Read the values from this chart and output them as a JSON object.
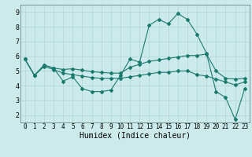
{
  "xlabel": "Humidex (Indice chaleur)",
  "xlim": [
    -0.5,
    23.5
  ],
  "ylim": [
    1.5,
    9.5
  ],
  "yticks": [
    2,
    3,
    4,
    5,
    6,
    7,
    8,
    9
  ],
  "xticks": [
    0,
    1,
    2,
    3,
    4,
    5,
    6,
    7,
    8,
    9,
    10,
    11,
    12,
    13,
    14,
    15,
    16,
    17,
    18,
    19,
    20,
    21,
    22,
    23
  ],
  "background_color": "#cceaea",
  "grid_color": "#aed4d4",
  "line_color": "#1a7a6e",
  "line1_x": [
    0,
    1,
    2,
    3,
    4,
    5,
    6,
    7,
    8,
    9,
    10,
    11,
    12,
    13,
    14,
    15,
    16,
    17,
    18,
    19,
    20,
    21,
    22,
    23
  ],
  "line1_y": [
    5.8,
    4.7,
    5.4,
    5.2,
    4.3,
    4.6,
    3.8,
    3.6,
    3.6,
    3.7,
    4.7,
    5.8,
    5.6,
    8.1,
    8.5,
    8.2,
    8.9,
    8.5,
    7.5,
    6.2,
    3.6,
    3.2,
    1.7,
    3.8
  ],
  "line2_x": [
    0,
    1,
    2,
    3,
    4,
    5,
    6,
    7,
    8,
    9,
    10,
    11,
    12,
    13,
    14,
    15,
    16,
    17,
    18,
    19,
    20,
    21,
    22,
    23
  ],
  "line2_y": [
    5.8,
    4.7,
    5.4,
    5.2,
    5.1,
    5.15,
    5.05,
    4.95,
    4.9,
    4.85,
    4.85,
    5.25,
    5.45,
    5.65,
    5.75,
    5.85,
    5.95,
    6.05,
    6.05,
    6.15,
    5.0,
    4.5,
    4.45,
    4.5
  ],
  "line3_x": [
    0,
    1,
    2,
    3,
    4,
    5,
    6,
    7,
    8,
    9,
    10,
    11,
    12,
    13,
    14,
    15,
    16,
    17,
    18,
    19,
    20,
    21,
    22,
    23
  ],
  "line3_y": [
    5.8,
    4.7,
    5.3,
    5.1,
    4.85,
    4.75,
    4.65,
    4.55,
    4.5,
    4.5,
    4.5,
    4.6,
    4.7,
    4.8,
    4.9,
    4.9,
    5.0,
    5.0,
    4.75,
    4.65,
    4.45,
    4.25,
    4.05,
    4.25
  ]
}
